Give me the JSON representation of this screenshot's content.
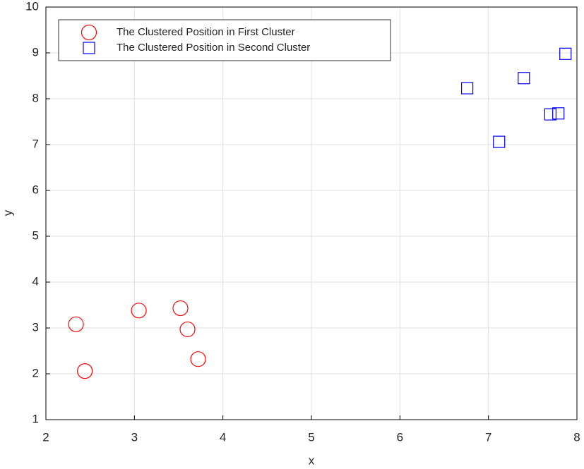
{
  "chart_data": {
    "type": "scatter",
    "xlabel": "x",
    "ylabel": "y",
    "xlim": [
      2,
      8
    ],
    "xticks": [
      2,
      3,
      4,
      5,
      6,
      7,
      8
    ],
    "ylim": [
      1,
      10
    ],
    "yticks": [
      1,
      2,
      3,
      4,
      5,
      6,
      7,
      8,
      9,
      10
    ],
    "grid": true,
    "legend": "upper left",
    "series": [
      {
        "name": "The Clustered Position in First Cluster",
        "color": "#ff0000",
        "marker": "circle",
        "x": [
          2.34,
          2.44,
          3.05,
          3.52,
          3.6,
          3.72
        ],
        "values": [
          3.08,
          2.06,
          3.38,
          3.43,
          2.97,
          2.32
        ]
      },
      {
        "name": "The Clustered Position in Second Cluster",
        "color": "#0000ff",
        "marker": "square",
        "x": [
          6.76,
          7.12,
          7.4,
          7.7,
          7.79,
          7.87
        ],
        "values": [
          8.23,
          7.06,
          8.45,
          7.66,
          7.68,
          8.98
        ]
      }
    ]
  }
}
